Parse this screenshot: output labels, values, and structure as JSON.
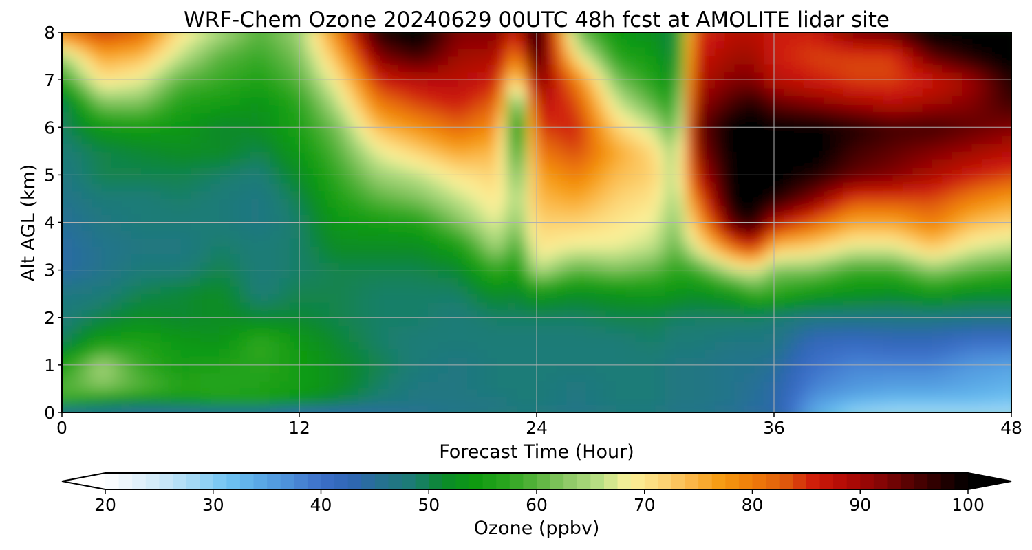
{
  "chart_data": {
    "type": "heatmap",
    "title": "WRF-Chem Ozone  20240629 00UTC 48h fcst at AMOLITE lidar site",
    "xlabel": "Forecast Time (Hour)",
    "ylabel": "Alt AGL (km)",
    "xlim": [
      0,
      48
    ],
    "ylim": [
      0,
      8
    ],
    "xticks": [
      0,
      12,
      24,
      36,
      48
    ],
    "yticks": [
      0,
      1,
      2,
      3,
      4,
      5,
      6,
      7,
      8
    ],
    "grid": true,
    "x_hours": [
      0,
      2,
      4,
      6,
      8,
      10,
      12,
      14,
      16,
      18,
      20,
      22,
      23,
      24,
      26,
      28,
      30,
      31,
      32,
      34,
      35,
      36,
      38,
      40,
      42,
      44,
      46,
      48
    ],
    "z_km": [
      0,
      0.25,
      0.5,
      1,
      1.5,
      2,
      2.5,
      3,
      3.5,
      4,
      4.5,
      5,
      5.5,
      6,
      6.5,
      7,
      7.5,
      8
    ],
    "ozone_ppbv": [
      [
        44,
        57,
        60,
        56,
        49,
        48,
        47,
        44,
        44,
        45,
        46,
        47,
        48,
        49,
        49,
        57,
        64,
        80
      ],
      [
        45,
        53,
        62,
        65,
        55,
        50,
        48,
        46,
        46,
        47,
        48,
        50,
        50,
        54,
        62,
        70,
        76,
        85
      ],
      [
        44,
        52,
        60,
        58,
        56,
        52,
        50,
        48,
        47,
        48,
        48,
        50,
        51,
        55,
        62,
        68,
        74,
        82
      ],
      [
        44,
        53,
        57,
        55,
        54,
        51,
        51,
        48,
        47,
        48,
        49,
        50,
        52,
        54,
        56,
        60,
        66,
        70
      ],
      [
        44,
        55,
        57,
        56,
        53,
        52,
        52,
        50,
        49,
        48,
        48,
        49,
        52,
        51,
        55,
        58,
        60,
        65
      ],
      [
        44,
        55,
        56,
        57,
        58,
        51,
        48,
        48,
        48,
        47,
        47,
        48,
        50,
        52,
        53,
        56,
        58,
        60
      ],
      [
        42,
        53,
        55,
        55,
        54,
        51,
        50,
        49,
        49,
        49,
        50,
        52,
        54,
        56,
        57,
        60,
        62,
        64
      ],
      [
        43,
        50,
        52,
        52,
        51,
        50,
        50,
        50,
        52,
        54,
        56,
        58,
        60,
        62,
        66,
        70,
        75,
        80
      ],
      [
        44,
        48,
        49,
        50,
        49,
        49,
        49,
        50,
        52,
        55,
        60,
        64,
        68,
        74,
        80,
        86,
        92,
        98
      ],
      [
        45,
        47,
        47,
        48,
        48,
        49,
        49,
        50,
        52,
        56,
        62,
        66,
        72,
        78,
        84,
        88,
        96,
        101
      ],
      [
        46,
        47,
        47,
        47,
        48,
        48,
        49,
        51,
        55,
        62,
        66,
        70,
        76,
        82,
        86,
        88,
        90,
        92
      ],
      [
        47,
        47,
        48,
        48,
        48,
        49,
        52,
        58,
        65,
        68,
        70,
        72,
        74,
        78,
        82,
        86,
        89,
        92
      ],
      [
        47,
        48,
        48,
        48,
        48,
        49,
        51,
        54,
        58,
        62,
        64,
        60,
        55,
        50,
        56,
        68,
        78,
        85
      ],
      [
        47,
        48,
        48,
        48,
        48,
        49,
        54,
        66,
        70,
        72,
        74,
        76,
        80,
        84,
        88,
        93,
        98,
        101
      ],
      [
        46,
        47,
        47,
        48,
        48,
        49,
        52,
        60,
        68,
        72,
        76,
        80,
        84,
        86,
        84,
        80,
        70,
        62
      ],
      [
        47,
        48,
        48,
        48,
        48,
        50,
        53,
        62,
        68,
        70,
        72,
        74,
        76,
        72,
        67,
        62,
        57,
        54
      ],
      [
        47,
        48,
        48,
        48,
        49,
        50,
        54,
        60,
        66,
        68,
        70,
        72,
        71,
        66,
        60,
        56,
        54,
        52
      ],
      [
        46,
        47,
        47,
        47,
        48,
        49,
        53,
        57,
        60,
        62,
        63,
        64,
        62,
        58,
        55,
        52,
        50,
        50
      ],
      [
        46,
        47,
        47,
        47,
        48,
        49,
        52,
        58,
        68,
        74,
        80,
        86,
        90,
        92,
        90,
        88,
        86,
        84
      ],
      [
        45,
        46,
        46,
        46,
        47,
        49,
        54,
        66,
        82,
        96,
        101,
        101,
        101,
        101,
        96,
        92,
        90,
        88
      ],
      [
        44,
        45,
        45,
        46,
        47,
        49,
        58,
        68,
        86,
        98,
        101,
        101,
        101,
        101,
        98,
        92,
        90,
        88
      ],
      [
        44,
        44,
        44,
        45,
        47,
        48,
        57,
        62,
        74,
        88,
        98,
        101,
        101,
        100,
        94,
        88,
        86,
        86
      ],
      [
        34,
        36,
        38,
        40,
        42,
        47,
        54,
        62,
        72,
        82,
        92,
        98,
        101,
        100,
        92,
        86,
        84,
        86
      ],
      [
        29,
        33,
        36,
        38,
        41,
        47,
        53,
        58,
        68,
        76,
        84,
        94,
        96,
        98,
        90,
        84,
        84,
        92
      ],
      [
        28,
        32,
        35,
        38,
        42,
        47,
        52,
        58,
        68,
        76,
        84,
        92,
        94,
        96,
        88,
        84,
        84,
        94
      ],
      [
        28,
        32,
        35,
        38,
        42,
        47,
        54,
        63,
        73,
        80,
        84,
        89,
        92,
        96,
        90,
        86,
        94,
        101
      ],
      [
        28,
        32,
        34,
        36,
        40,
        47,
        52,
        60,
        68,
        74,
        80,
        86,
        90,
        94,
        92,
        90,
        98,
        101
      ],
      [
        28,
        31,
        33,
        35,
        40,
        47,
        52,
        58,
        66,
        72,
        77,
        84,
        88,
        92,
        96,
        98,
        101,
        101
      ]
    ]
  },
  "colorbar": {
    "label": "Ozone  (ppbv)",
    "min": 20,
    "max": 100,
    "ticks": [
      20,
      30,
      40,
      50,
      60,
      70,
      80,
      90,
      100
    ],
    "extend": "both",
    "colors": [
      "#ffffff",
      "#e4f2fb",
      "#c5e6f8",
      "#9ed6f5",
      "#6fc3f2",
      "#5aa9e6",
      "#4c8ed9",
      "#3c6fc8",
      "#2f66b4",
      "#25728f",
      "#1b7d72",
      "#0a8a2a",
      "#0e9a10",
      "#2aa51e",
      "#58b33d",
      "#8dc866",
      "#b7df84",
      "#fbf19a",
      "#fcd87a",
      "#fbb84a",
      "#f59a10",
      "#ef7c0a",
      "#df5d0c",
      "#cf1d0a",
      "#b30a05",
      "#8c0505",
      "#5c0202",
      "#2c0000",
      "#000000"
    ]
  }
}
